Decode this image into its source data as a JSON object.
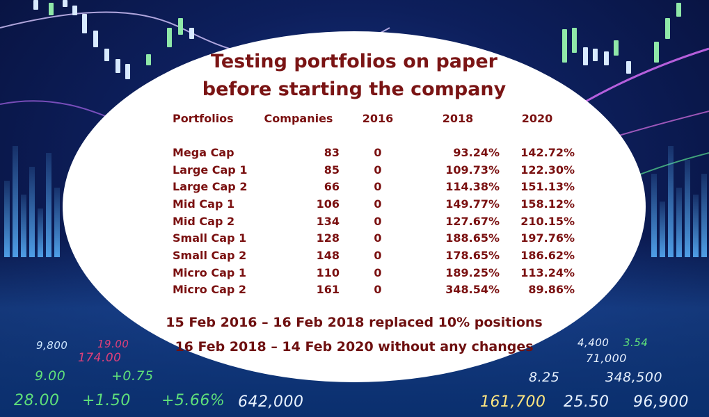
{
  "title_line1": "Testing portfolios on paper",
  "title_line2": "before starting the company",
  "columns": [
    "Portfolios",
    "Companies",
    "2016",
    "2018",
    "2020"
  ],
  "rows": [
    {
      "portfolio": "Mega Cap",
      "companies": "83",
      "y2016": "0",
      "y2018": "93.24%",
      "y2020": "142.72%"
    },
    {
      "portfolio": "Large Cap 1",
      "companies": "85",
      "y2016": "0",
      "y2018": "109.73%",
      "y2020": "122.30%"
    },
    {
      "portfolio": "Large Cap 2",
      "companies": "66",
      "y2016": "0",
      "y2018": "114.38%",
      "y2020": "151.13%"
    },
    {
      "portfolio": "Mid Cap 1",
      "companies": "106",
      "y2016": "0",
      "y2018": "149.77%",
      "y2020": "158.12%"
    },
    {
      "portfolio": "Mid Cap 2",
      "companies": "134",
      "y2016": "0",
      "y2018": "127.67%",
      "y2020": "210.15%"
    },
    {
      "portfolio": "Small Cap 1",
      "companies": "128",
      "y2016": "0",
      "y2018": "188.65%",
      "y2020": "197.76%"
    },
    {
      "portfolio": "Small Cap 2",
      "companies": "148",
      "y2016": "0",
      "y2018": "178.65%",
      "y2020": "186.62%"
    },
    {
      "portfolio": "Micro Cap 1",
      "companies": "110",
      "y2016": "0",
      "y2018": "189.25%",
      "y2020": "113.24%"
    },
    {
      "portfolio": "Micro Cap 2",
      "companies": "161",
      "y2016": "0",
      "y2018": "348.54%",
      "y2020": "89.86%"
    }
  ],
  "note_line1": "15 Feb 2016 – 16 Feb 2018 replaced 10% positions",
  "note_line2": "16 Feb 2018 – 14 Feb 2020 without any changes",
  "background_tickers": [
    {
      "text": "9,800",
      "color": "#cfe8ff"
    },
    {
      "text": "19.00",
      "color": "#e0407a"
    },
    {
      "text": "174.00",
      "color": "#e0407a"
    },
    {
      "text": "9.00",
      "color": "#5fe07a"
    },
    {
      "text": "+0.75",
      "color": "#5fe07a"
    },
    {
      "text": "28.00",
      "color": "#5fe07a"
    },
    {
      "text": "+1.50",
      "color": "#5fe07a"
    },
    {
      "text": "+5.66%",
      "color": "#5fe07a"
    },
    {
      "text": "642,000",
      "color": "#e8f2ff"
    },
    {
      "text": "4,400",
      "color": "#e8f2ff"
    },
    {
      "text": "3.54",
      "color": "#5fe07a"
    },
    {
      "text": "71,000",
      "color": "#e8f2ff"
    },
    {
      "text": "8.25",
      "color": "#e8f2ff"
    },
    {
      "text": "348,500",
      "color": "#e8f2ff"
    },
    {
      "text": "161,700",
      "color": "#ffe680"
    },
    {
      "text": "25.50",
      "color": "#e8f2ff"
    },
    {
      "text": "96,900",
      "color": "#e8f2ff"
    }
  ],
  "chart_data": {
    "type": "table",
    "title": "Testing portfolios on paper before starting the company",
    "columns": [
      "Portfolios",
      "Companies",
      "2016",
      "2018",
      "2020"
    ],
    "rows": [
      [
        "Mega Cap",
        83,
        0,
        93.24,
        142.72
      ],
      [
        "Large Cap 1",
        85,
        0,
        109.73,
        122.3
      ],
      [
        "Large Cap 2",
        66,
        0,
        114.38,
        151.13
      ],
      [
        "Mid Cap 1",
        106,
        0,
        149.77,
        158.12
      ],
      [
        "Mid Cap 2",
        134,
        0,
        127.67,
        210.15
      ],
      [
        "Small Cap 1",
        128,
        0,
        188.65,
        197.76
      ],
      [
        "Small Cap 2",
        148,
        0,
        178.65,
        186.62
      ],
      [
        "Micro Cap 1",
        110,
        0,
        189.25,
        113.24
      ],
      [
        "Micro Cap 2",
        161,
        0,
        348.54,
        89.86
      ]
    ],
    "annotations": [
      "15 Feb 2016 – 16 Feb 2018 replaced 10% positions",
      "16 Feb 2018 – 14 Feb 2020 without any changes"
    ]
  }
}
